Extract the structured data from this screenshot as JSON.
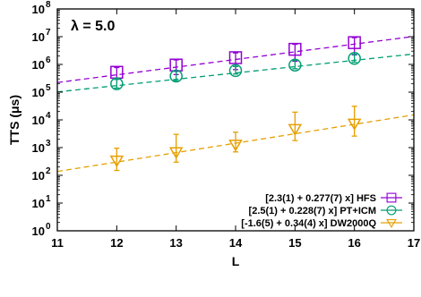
{
  "chart_data": {
    "type": "scatter",
    "annotation": "λ = 5.0",
    "xlabel": "L",
    "ylabel": "TTS (μs)",
    "xlim": [
      11,
      17
    ],
    "ylim_log10": [
      0,
      8
    ],
    "y_scale": "log",
    "x_ticks": [
      11,
      12,
      13,
      14,
      15,
      16,
      17
    ],
    "x_tick_labels": [
      "11",
      "12",
      "13",
      "14",
      "15",
      "16",
      "17"
    ],
    "y_ticks": [
      1,
      10,
      100,
      1000,
      10000,
      100000,
      1000000,
      10000000,
      100000000
    ],
    "y_tick_labels": [
      {
        "base": "10",
        "exp": "0"
      },
      {
        "base": "10",
        "exp": "1"
      },
      {
        "base": "10",
        "exp": "2"
      },
      {
        "base": "10",
        "exp": "3"
      },
      {
        "base": "10",
        "exp": "4"
      },
      {
        "base": "10",
        "exp": "5"
      },
      {
        "base": "10",
        "exp": "6"
      },
      {
        "base": "10",
        "exp": "7"
      },
      {
        "base": "10",
        "exp": "8"
      }
    ],
    "grid": false,
    "legend_position": "bottom-right",
    "series": [
      {
        "name": "[2.3(1) + 0.277(7) x] HFS",
        "color": "#9400d3",
        "marker": "square",
        "fit": {
          "a": 2.3,
          "b": 0.277
        },
        "x": [
          12,
          13,
          14,
          15,
          16
        ],
        "y": [
          520000,
          950000,
          1750000,
          3500000,
          6100000
        ],
        "y_err_low": [
          290000,
          430000,
          650000,
          1300000,
          2200000
        ],
        "y_err_high": [
          770000,
          1450000,
          2600000,
          5300000,
          9200000
        ]
      },
      {
        "name": "[2.5(1) + 0.228(7) x] PT+ICM",
        "color": "#009e73",
        "marker": "circle",
        "fit": {
          "a": 2.5,
          "b": 0.228
        },
        "x": [
          12,
          13,
          14,
          15,
          16
        ],
        "y": [
          200000,
          380000,
          600000,
          950000,
          1650000
        ],
        "y_err_low": [
          140000,
          260000,
          450000,
          700000,
          1200000
        ],
        "y_err_high": [
          290000,
          560000,
          840000,
          1400000,
          2300000
        ]
      },
      {
        "name": "[-1.6(5) + 0.34(4) x] DW2000Q",
        "color": "#e69f00",
        "marker": "triangle-down",
        "fit": {
          "a": -1.6,
          "b": 0.34
        },
        "x": [
          12,
          13,
          14,
          15,
          16
        ],
        "y": [
          350,
          700,
          1300,
          4800,
          7500
        ],
        "y_err_low": [
          150,
          300,
          700,
          1800,
          2600
        ],
        "y_err_high": [
          950,
          3000,
          3600,
          19000,
          31000
        ]
      }
    ]
  }
}
